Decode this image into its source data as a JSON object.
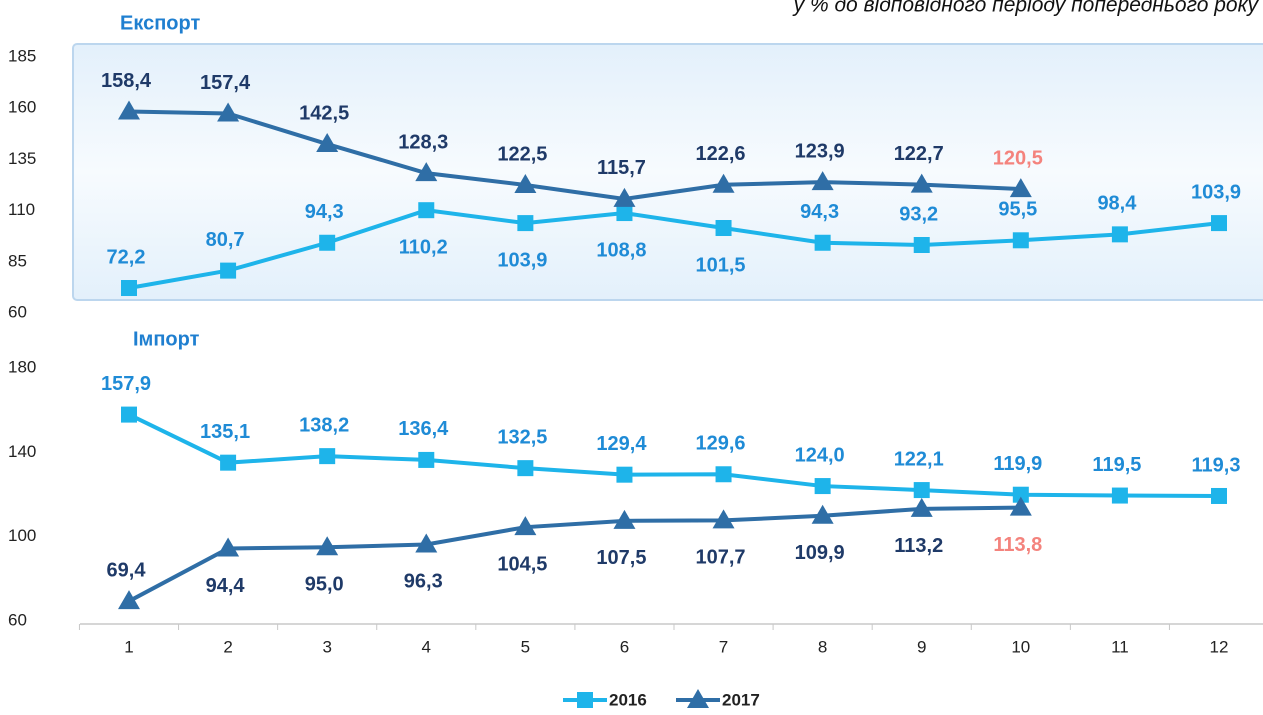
{
  "chart_data": [
    {
      "type": "line",
      "title": "Експорт",
      "subtitle": "у % до відповідного періоду попереднього року",
      "ylim": [
        60,
        185
      ],
      "yticks": [
        60,
        85,
        110,
        135,
        160,
        185
      ],
      "series": [
        {
          "name": "2016",
          "color": "#1eb4ea",
          "label_color": "#1f8bd6",
          "marker": "square",
          "values": [
            72.2,
            80.7,
            94.3,
            110.2,
            103.9,
            108.8,
            101.5,
            94.3,
            93.2,
            95.5,
            98.4,
            103.9
          ],
          "value_labels": [
            "72,2",
            "80,7",
            "94,3",
            "110,2",
            "103,9",
            "108,8",
            "101,5",
            "94,3",
            "93,2",
            "95,5",
            "98,4",
            "103,9"
          ]
        },
        {
          "name": "2017",
          "color": "#2f6ea6",
          "label_color": "#1f3a68",
          "last_label_color": "#f4837d",
          "marker": "triangle",
          "values": [
            158.4,
            157.4,
            142.5,
            128.3,
            122.5,
            115.7,
            122.6,
            123.9,
            122.7,
            120.5,
            null,
            null
          ],
          "value_labels": [
            "158,4",
            "157,4",
            "142,5",
            "128,3",
            "122,5",
            "115,7",
            "122,6",
            "123,9",
            "122,7",
            "120,5",
            null,
            null
          ]
        }
      ]
    },
    {
      "type": "line",
      "title": "Імпорт",
      "categories": [
        "1",
        "2",
        "3",
        "4",
        "5",
        "6",
        "7",
        "8",
        "9",
        "10",
        "11",
        "12"
      ],
      "ylim": [
        60,
        180
      ],
      "yticks": [
        60,
        100,
        140,
        180
      ],
      "series": [
        {
          "color": "#1eb4ea",
          "label_color": "#1f8bd6",
          "marker": "square",
          "values": [
            157.9,
            135.1,
            138.2,
            136.4,
            132.5,
            129.4,
            129.6,
            124.0,
            122.1,
            119.9,
            119.5,
            119.3
          ],
          "value_labels": [
            "157,9",
            "135,1",
            "138,2",
            "136,4",
            "132,5",
            "129,4",
            "129,6",
            "124,0",
            "122,1",
            "119,9",
            "119,5",
            "119,3"
          ]
        },
        {
          "color": "#2f6ea6",
          "label_color": "#1f3a68",
          "last_label_color": "#f4837d",
          "marker": "triangle",
          "values": [
            69.4,
            94.4,
            95.0,
            96.3,
            104.5,
            107.5,
            107.7,
            109.9,
            113.2,
            113.8,
            null,
            null
          ],
          "value_labels": [
            "69,4",
            "94,4",
            "95,0",
            "96,3",
            "104,5",
            "107,5",
            "107,7",
            "109,9",
            "113,2",
            "113,8",
            null,
            null
          ]
        }
      ]
    }
  ]
}
